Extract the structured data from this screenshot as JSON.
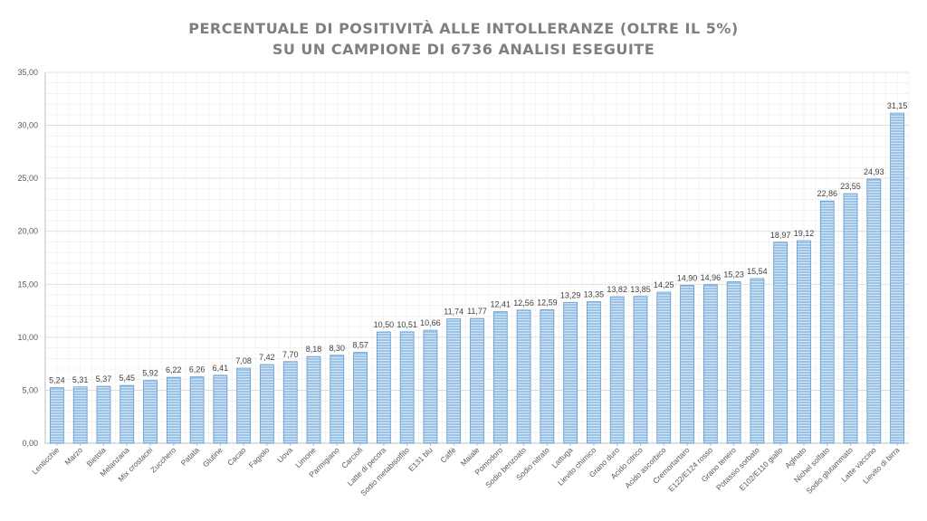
{
  "chart_data": {
    "type": "bar",
    "title_line1": "PERCENTUALE DI POSITIVITÀ ALLE INTOLLERANZE (OLTRE IL 5%)",
    "title_line2": "SU UN CAMPIONE DI 6736 ANALISI ESEGUITE",
    "xlabel": "",
    "ylabel": "",
    "ylim": [
      0,
      35
    ],
    "ytick_step": 5,
    "ytick_labels": [
      "0,00",
      "5,00",
      "10,00",
      "15,00",
      "20,00",
      "25,00",
      "30,00",
      "35,00"
    ],
    "grid": true,
    "legend": "none",
    "bar_color": "#9dc3e6",
    "bar_stroke_color": "#5b9bd5",
    "categories": [
      "Lenticchie",
      "Marzo",
      "Bietola",
      "Melanzana",
      "Mix crostacei",
      "Zucchero",
      "Patata",
      "Glutine",
      "Cacao",
      "Fagiolo",
      "Uova",
      "Limone",
      "Parmigiano",
      "Carciofi",
      "Latte di pecora",
      "Sodio metabisolfito",
      "E131 blu",
      "Caffè",
      "Maiale",
      "Pomodoro",
      "Sodio benzoato",
      "Sodio nitrato",
      "Lattuga",
      "Lievito chimico",
      "Grano duro",
      "Acido citrico",
      "Acido ascorbico",
      "Cremortartaro",
      "E122/E124 rosso",
      "Grano tenero",
      "Potassio sorbato",
      "E102/E110 giallo",
      "Aglnato",
      "Nichel solfato",
      "Sodio glutammato",
      "Latte vaccino",
      "Lievito di birra"
    ],
    "values": [
      5.24,
      5.31,
      5.37,
      5.45,
      5.92,
      6.22,
      6.26,
      6.41,
      7.08,
      7.42,
      7.7,
      8.18,
      8.3,
      8.57,
      10.5,
      10.51,
      10.66,
      11.74,
      11.77,
      12.41,
      12.56,
      12.59,
      13.29,
      13.35,
      13.82,
      13.85,
      14.25,
      14.9,
      14.96,
      15.23,
      15.54,
      18.97,
      19.12,
      22.86,
      23.55,
      24.93,
      31.15
    ],
    "value_labels": [
      "5,24",
      "5,31",
      "5,37",
      "5,45",
      "5,92",
      "6,22",
      "6,26",
      "6,41",
      "7,08",
      "7,42",
      "7,70",
      "8,18",
      "8,30",
      "8,57",
      "10,50",
      "10,51",
      "10,66",
      "11,74",
      "11,77",
      "12,41",
      "12,56",
      "12,59",
      "13,29",
      "13,35",
      "13,82",
      "13,85",
      "14,25",
      "14,90",
      "14,96",
      "15,23",
      "15,54",
      "18,97",
      "19,12",
      "22,86",
      "23,55",
      "24,93",
      "31,15"
    ]
  }
}
